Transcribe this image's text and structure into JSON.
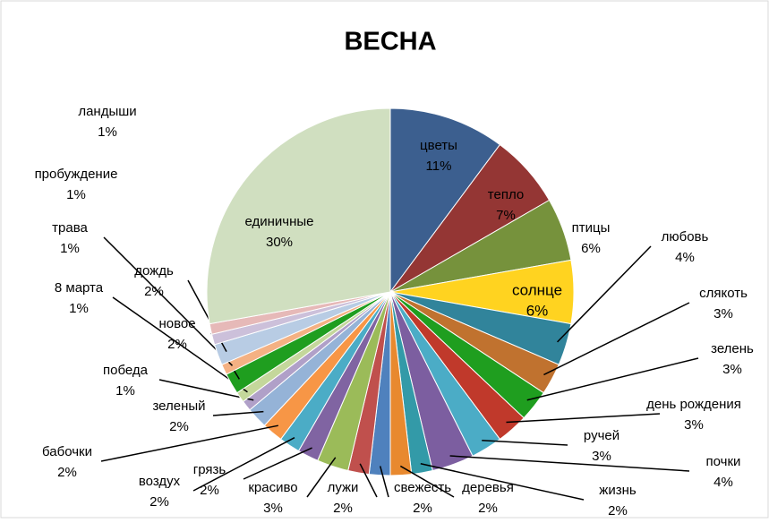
{
  "chart_data": {
    "type": "pie",
    "title": "ВЕСНА",
    "categories": [
      "цветы",
      "тепло",
      "птицы",
      "солнце",
      "любовь",
      "слякоть",
      "зелень",
      "день рождения",
      "ручей",
      "почки",
      "жизнь",
      "деревья",
      "свежесть",
      "лужи",
      "красиво",
      "грязь",
      "воздух",
      "бабочки",
      "зеленый",
      "победа",
      "8 марта",
      "новое",
      "трава",
      "дождь",
      "пробуждение",
      "ландыши",
      "единичные"
    ],
    "values": [
      11,
      7,
      6,
      6,
      4,
      3,
      3,
      3,
      3,
      4,
      2,
      2,
      2,
      2,
      3,
      2,
      2,
      2,
      2,
      1,
      1,
      2,
      1,
      2,
      1,
      1,
      30
    ],
    "value_labels": [
      "11%",
      "7%",
      "6%",
      "6%",
      "4%",
      "3%",
      "3%",
      "3%",
      "3%",
      "4%",
      "2%",
      "2%",
      "2%",
      "2%",
      "3%",
      "2%",
      "2%",
      "2%",
      "2%",
      "1%",
      "1%",
      "2%",
      "1%",
      "2%",
      "1%",
      "1%",
      "30%"
    ],
    "colors": [
      "#3c5f8f",
      "#943634",
      "#76923c",
      "#ffd320",
      "#31849b",
      "#c0722f",
      "#1f9e1f",
      "#c0392b",
      "#4bacc6",
      "#7c5ea0",
      "#339aa8",
      "#e8892f",
      "#4f81bd",
      "#c0504d",
      "#9bbb59",
      "#8064a2",
      "#4bacc6",
      "#f79646",
      "#95b3d7",
      "#b0a0c8",
      "#c4d79b",
      "#1f9e1f",
      "#f4b183",
      "#b8cce4",
      "#ccc0da",
      "#e6b9b8",
      "#d0dfc0"
    ]
  }
}
